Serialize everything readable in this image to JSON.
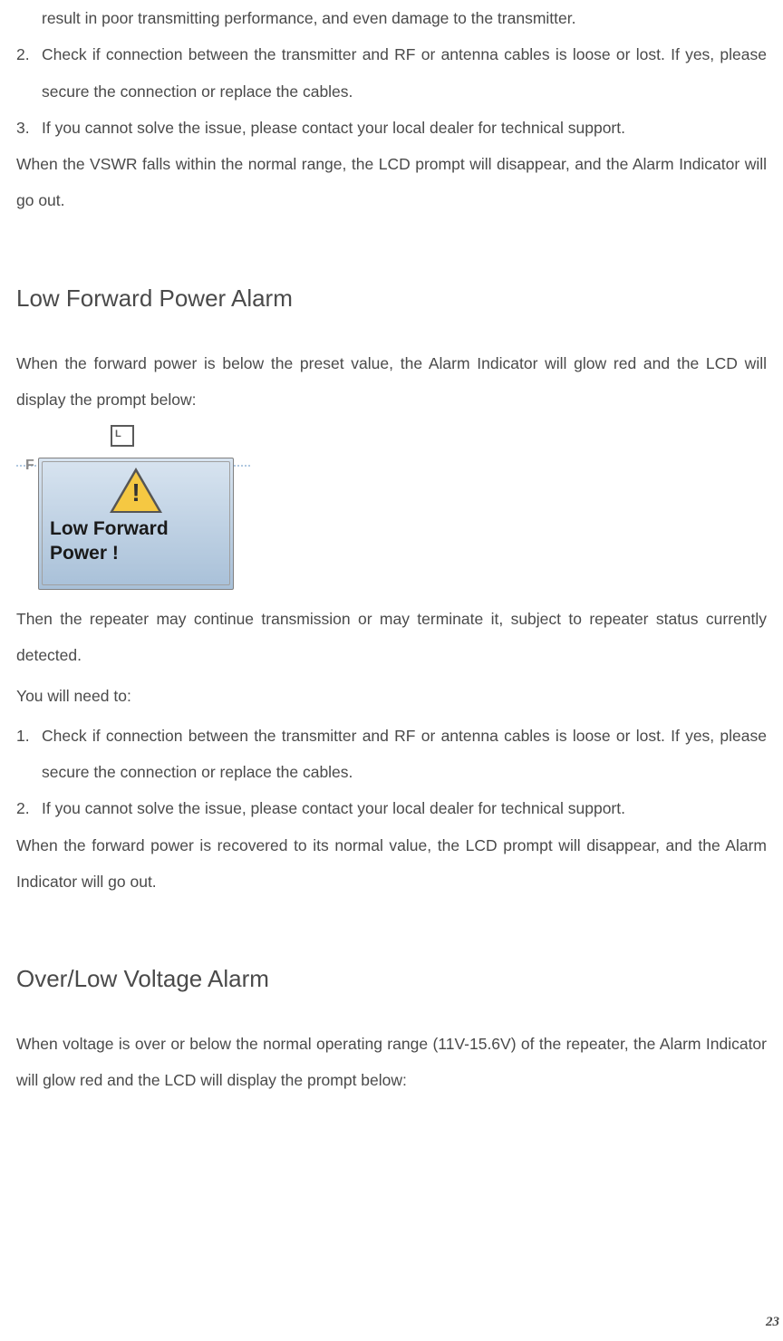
{
  "intro": {
    "line1": "result in poor transmitting performance, and even damage to the transmitter.",
    "item2_num": "2.",
    "item2_text": "Check if connection between the transmitter and RF or antenna cables is loose or lost. If yes, please secure the connection or replace the cables.",
    "item3_num": "3.",
    "item3_text": "If you cannot solve the issue, please contact your local dealer for technical support.",
    "closing": "When the VSWR falls within the normal range, the LCD prompt will disappear, and the Alarm Indicator will go out."
  },
  "section1": {
    "heading": "Low Forward Power Alarm",
    "intro": "When the forward power is below the preset value, the Alarm Indicator will glow red and the LCD will display the prompt below:",
    "lcd": {
      "top_icon_letter": "L",
      "side_letter": "F",
      "line1": "Low Forward",
      "line2": "Power !",
      "exclamation": "!",
      "box_gradient_top": "#d8e4f0",
      "box_gradient_bottom": "#a8c0d8",
      "triangle_color": "#f5c842",
      "triangle_border": "#555555"
    },
    "after_lcd": "Then the repeater may continue transmission or may terminate it, subject to repeater status currently detected.",
    "you_will": "You will need to:",
    "item1_num": "1.",
    "item1_text": "Check if connection between the transmitter and RF or antenna cables is loose or lost. If yes, please secure the connection or replace the cables.",
    "item2_num": "2.",
    "item2_text": "If you cannot solve the issue, please contact your local dealer for technical support.",
    "closing": "When the forward power is recovered to its normal value, the LCD prompt will disappear, and the Alarm Indicator will go out."
  },
  "section2": {
    "heading": "Over/Low Voltage Alarm",
    "intro": "When voltage is over or below the normal operating range (11V-15.6V) of the repeater, the Alarm Indicator will glow red and the LCD will display the prompt below:"
  },
  "page_number": "23",
  "styling": {
    "body_font_size": 17.5,
    "heading_font_size": 26,
    "text_color": "#4a4a4a",
    "line_height": 2.3
  }
}
